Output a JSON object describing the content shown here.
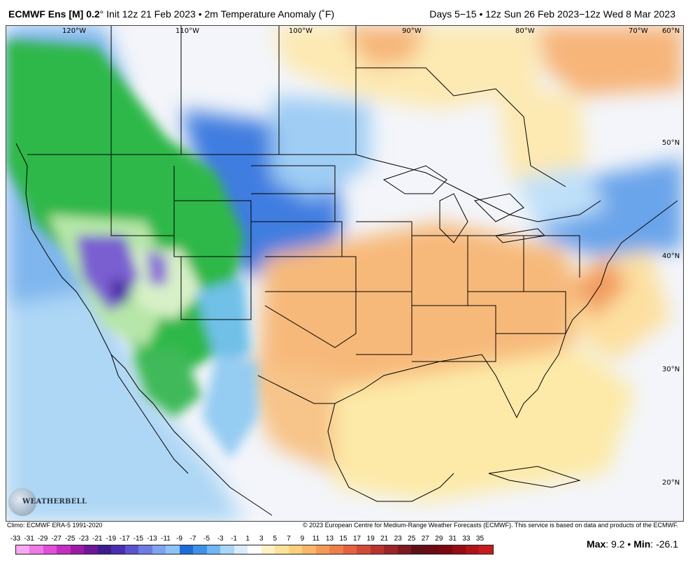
{
  "header": {
    "model_bold": "ECMWF Ens [M] 0.2",
    "model_rest": "° Init 12z 21 Feb 2023 • 2m Temperature Anomaly (˚F)",
    "valid": "Days 5−15 • 12z Sun 26 Feb 2023−12z Wed 8 Mar 2023"
  },
  "footer": {
    "climo": "Climo: ECMWF ERA-5 1991-2020",
    "copyright": "© 2023 European Centre for Medium-Range Weather Forecasts (ECMWF). This service is based on data and products of the ECMWF."
  },
  "stats": {
    "max_label": "Max",
    "max_value": ": 9.2 • ",
    "min_label": "Min",
    "min_value": ": -26.1"
  },
  "logo": {
    "text": "WEATHERBELL"
  },
  "map": {
    "lon_labels": [
      "120°W",
      "110°W",
      "100°W",
      "90°W",
      "80°W",
      "70°W",
      "60°N"
    ],
    "lat_labels": [
      "50°N",
      "40°N",
      "30°N",
      "20°N"
    ],
    "colors": {
      "ocean_cool": "#7fb6ee",
      "land_green": "#2fb84a",
      "land_light_green": "#b6e6a8",
      "purple": "#7a5fd0",
      "warm_orange": "#f7b97a",
      "pale_yellow": "#fdeaa8",
      "near_zero": "#f4f6fa",
      "coast_line": "#000000"
    }
  },
  "legend": {
    "labels": [
      "-33",
      "-31",
      "-29",
      "-27",
      "-25",
      "-23",
      "-21",
      "-19",
      "-17",
      "-15",
      "-13",
      "-11",
      "-9",
      "-7",
      "-5",
      "-3",
      "-1",
      "1",
      "3",
      "5",
      "7",
      "9",
      "11",
      "13",
      "15",
      "17",
      "19",
      "21",
      "23",
      "25",
      "27",
      "29",
      "31",
      "33",
      "35"
    ],
    "colors": [
      "#f7a8f0",
      "#ee7ae5",
      "#e04fd6",
      "#c22ec0",
      "#9c1aa3",
      "#6b1797",
      "#3b1c8f",
      "#4a2fae",
      "#5b52cc",
      "#6d7ce0",
      "#7fa3ee",
      "#8fc3f6",
      "#1f6bd6",
      "#3e90e8",
      "#6fb6f2",
      "#a9d6f7",
      "#d8ecfb",
      "#fdfdfd",
      "#fff1c4",
      "#fde29a",
      "#fbcf7d",
      "#f8b669",
      "#f49a58",
      "#ee7f4b",
      "#e4623f",
      "#d24937",
      "#b73330",
      "#9b2428",
      "#7d1920",
      "#5e1018",
      "#6a0a14",
      "#7b0810",
      "#930c12",
      "#ad1418",
      "#c41c1e"
    ]
  }
}
